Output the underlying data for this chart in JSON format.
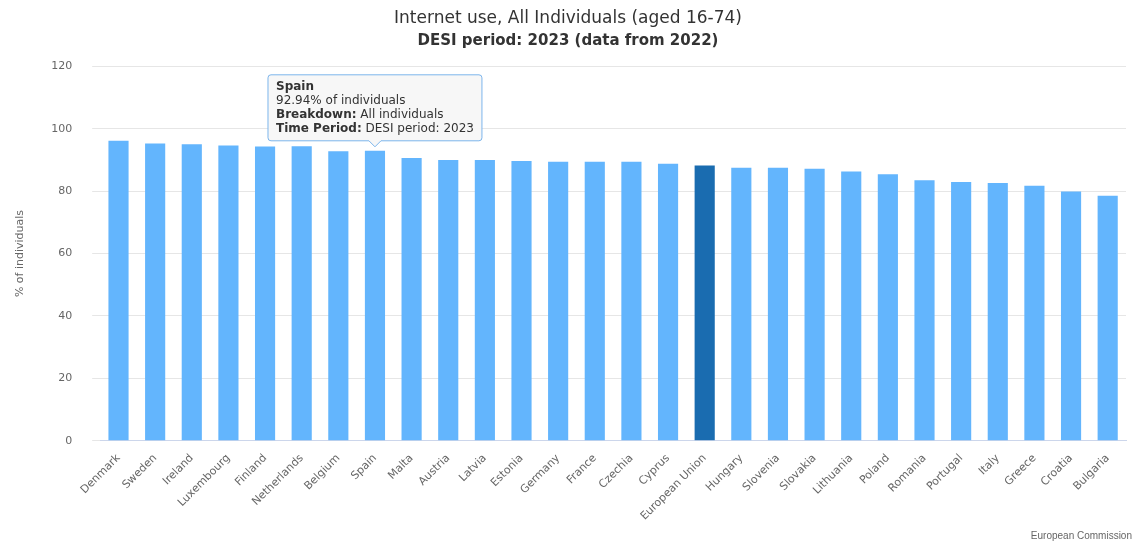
{
  "chart_data": {
    "type": "bar",
    "title": "Internet use, All Individuals (aged 16-74)",
    "subtitle": "DESI period: 2023 (data from 2022)",
    "ylabel": "% of individuals",
    "categories": [
      "Denmark",
      "Sweden",
      "Ireland",
      "Luxembourg",
      "Finland",
      "Netherlands",
      "Belgium",
      "Spain",
      "Malta",
      "Austria",
      "Latvia",
      "Estonia",
      "Germany",
      "France",
      "Czechia",
      "Cyprus",
      "European Union",
      "Hungary",
      "Slovenia",
      "Slovakia",
      "Lithuania",
      "Poland",
      "Romania",
      "Portugal",
      "Italy",
      "Greece",
      "Croatia",
      "Bulgaria"
    ],
    "values": [
      96.2,
      95.3,
      95.0,
      94.6,
      94.3,
      94.4,
      92.8,
      92.94,
      90.6,
      90.0,
      90.0,
      89.7,
      89.4,
      89.4,
      89.4,
      88.8,
      88.2,
      87.5,
      87.5,
      87.2,
      86.3,
      85.4,
      83.5,
      82.9,
      82.6,
      81.7,
      79.9,
      78.5
    ],
    "colors": [
      "#63b5fd",
      "#63b5fd",
      "#63b5fd",
      "#63b5fd",
      "#63b5fd",
      "#63b5fd",
      "#63b5fd",
      "#63b5fd",
      "#63b5fd",
      "#63b5fd",
      "#63b5fd",
      "#63b5fd",
      "#63b5fd",
      "#63b5fd",
      "#63b5fd",
      "#63b5fd",
      "#1a6cb0",
      "#63b5fd",
      "#63b5fd",
      "#63b5fd",
      "#63b5fd",
      "#63b5fd",
      "#63b5fd",
      "#63b5fd",
      "#63b5fd",
      "#63b5fd",
      "#63b5fd",
      "#63b5fd"
    ],
    "ylim": [
      0,
      120
    ],
    "yticks": [
      0,
      20,
      40,
      60,
      80,
      100,
      120
    ],
    "grid": "y",
    "legend": false,
    "annotations": [
      {
        "text": "Spain\n92.94% of individuals\nBreakdown: All individuals\nTime Period: DESI period: 2023",
        "x": "Spain",
        "y": 92.94
      },
      "European Commission"
    ]
  }
}
